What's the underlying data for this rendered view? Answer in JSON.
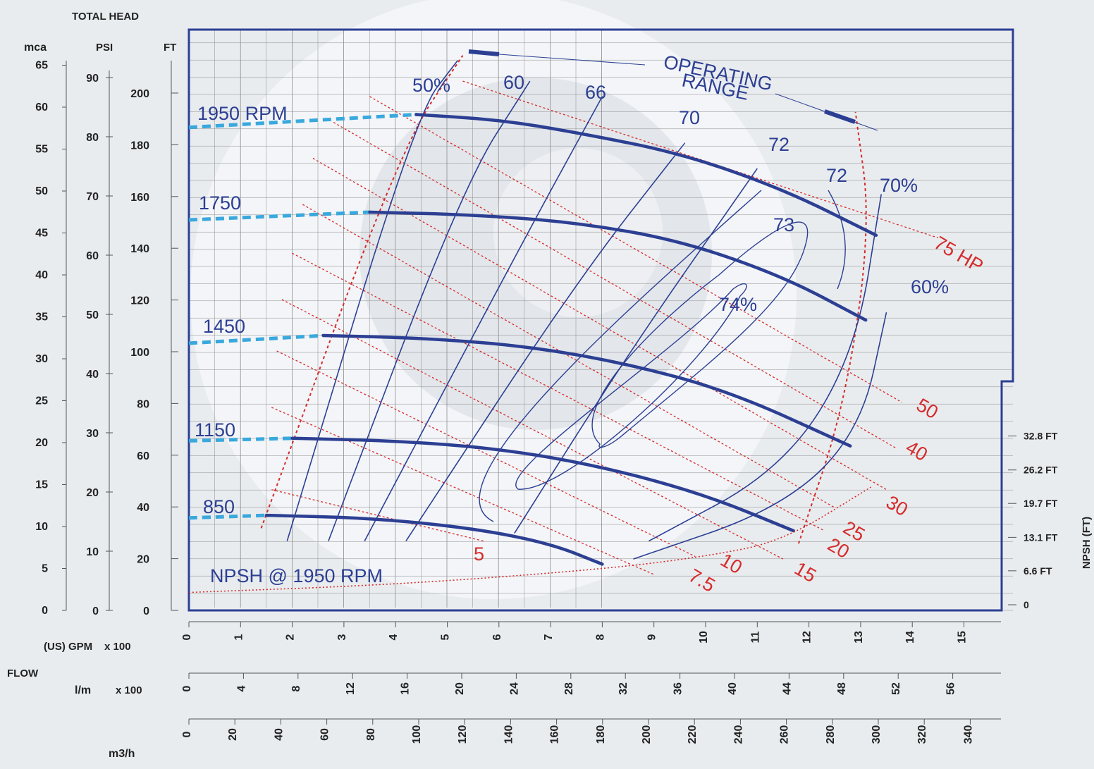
{
  "chart_data": {
    "type": "line",
    "title": "",
    "header": "TOTAL HEAD",
    "left_axes": {
      "mca": {
        "label": "mca",
        "ticks": [
          0,
          5,
          10,
          15,
          20,
          25,
          30,
          35,
          40,
          45,
          50,
          55,
          60,
          65
        ]
      },
      "psi": {
        "label": "PSI",
        "ticks": [
          0,
          10,
          20,
          30,
          40,
          50,
          60,
          70,
          80,
          90
        ]
      },
      "ft": {
        "label": "FT",
        "ticks": [
          0,
          20,
          40,
          60,
          80,
          100,
          120,
          140,
          160,
          180,
          200
        ]
      }
    },
    "flow_label": "FLOW",
    "bottom_axes": {
      "gpm": {
        "label": "(US) GPM",
        "multiplier": "x 100",
        "ticks": [
          0,
          1,
          2,
          3,
          4,
          5,
          6,
          7,
          8,
          9,
          10,
          11,
          12,
          13,
          14,
          15
        ]
      },
      "lpm": {
        "label": "l/m",
        "multiplier": "x 100",
        "ticks": [
          0,
          4,
          8,
          12,
          16,
          20,
          24,
          28,
          32,
          36,
          40,
          44,
          48,
          52,
          56
        ]
      },
      "m3h": {
        "label": "m3/h",
        "ticks": [
          0,
          20,
          40,
          60,
          80,
          100,
          120,
          140,
          160,
          180,
          200,
          220,
          240,
          260,
          280,
          300,
          320,
          340
        ]
      }
    },
    "npsh_axis": {
      "label": "NPSH (FT)",
      "ticks": [
        {
          "label": "0",
          "value": 0
        },
        {
          "label": "6.6 FT",
          "value": 6.6
        },
        {
          "label": "13.1 FT",
          "value": 13.1
        },
        {
          "label": "19.7 FT",
          "value": 19.7
        },
        {
          "label": "26.2 FT",
          "value": 26.2
        },
        {
          "label": "32.8 FT",
          "value": 32.8
        }
      ]
    },
    "xlim": [
      0,
      15.5
    ],
    "ylim": [
      0,
      225
    ],
    "grid": true,
    "speed_curves": [
      {
        "label": "1950 RPM",
        "dashed": [
          [
            0,
            188
          ],
          [
            4.4,
            193
          ]
        ],
        "points": [
          [
            4.4,
            193
          ],
          [
            6,
            191
          ],
          [
            7.5,
            186
          ],
          [
            9.5,
            178
          ],
          [
            11.5,
            164
          ],
          [
            13.3,
            146
          ]
        ]
      },
      {
        "label": "1750",
        "dashed": [
          [
            0,
            152
          ],
          [
            3.5,
            155
          ]
        ],
        "points": [
          [
            3.5,
            155
          ],
          [
            5.5,
            154
          ],
          [
            7.5,
            151
          ],
          [
            9.5,
            144
          ],
          [
            11.5,
            130
          ],
          [
            13.1,
            113
          ]
        ]
      },
      {
        "label": "1450",
        "dashed": [
          [
            0,
            104
          ],
          [
            2.6,
            107
          ]
        ],
        "points": [
          [
            2.6,
            107
          ],
          [
            4.5,
            106
          ],
          [
            6.5,
            103
          ],
          [
            8.5,
            96
          ],
          [
            10.5,
            85
          ],
          [
            12.8,
            64
          ]
        ]
      },
      {
        "label": "1150",
        "dashed": [
          [
            0,
            66
          ],
          [
            2.0,
            67
          ]
        ],
        "points": [
          [
            2.0,
            67
          ],
          [
            4,
            66
          ],
          [
            6,
            63
          ],
          [
            8,
            56
          ],
          [
            10,
            45
          ],
          [
            11.7,
            31
          ]
        ]
      },
      {
        "label": "850",
        "dashed": [
          [
            0,
            36
          ],
          [
            1.5,
            37
          ]
        ],
        "points": [
          [
            1.5,
            37
          ],
          [
            3.5,
            36
          ],
          [
            5.5,
            32
          ],
          [
            7,
            26
          ],
          [
            8,
            18
          ]
        ]
      }
    ],
    "efficiency_lines": [
      {
        "label": "50%",
        "points": [
          [
            1.9,
            27
          ],
          [
            4.4,
            193
          ],
          [
            5.2,
            214
          ]
        ]
      },
      {
        "label": "60",
        "points": [
          [
            2.7,
            27
          ],
          [
            5.3,
            165
          ],
          [
            6.6,
            206
          ]
        ]
      },
      {
        "label": "66",
        "points": [
          [
            3.4,
            27
          ],
          [
            6.5,
            145
          ],
          [
            8.0,
            200
          ]
        ]
      },
      {
        "label": "70",
        "points": [
          [
            4.2,
            27
          ],
          [
            7.5,
            128
          ],
          [
            9.6,
            182
          ]
        ]
      },
      {
        "label": "72",
        "points": [
          [
            6.3,
            30
          ],
          [
            8.5,
            100
          ],
          [
            11.0,
            172
          ]
        ]
      },
      {
        "label": "70%",
        "points": [
          [
            13.4,
            162
          ],
          [
            12.9,
            100
          ],
          [
            11.5,
            55
          ],
          [
            8.9,
            27
          ]
        ]
      },
      {
        "label": "60%",
        "points": [
          [
            13.5,
            116
          ],
          [
            13.0,
            70
          ],
          [
            11.5,
            40
          ],
          [
            8.6,
            20
          ]
        ]
      }
    ],
    "efficiency_contours": [
      {
        "label": "73"
      },
      {
        "label": "74%"
      },
      {
        "label": "72"
      }
    ],
    "horsepower_lines": [
      {
        "label": "5",
        "points": [
          [
            1.6,
            47
          ],
          [
            5.7,
            27
          ]
        ]
      },
      {
        "label": "7.5",
        "points": [
          [
            1.6,
            79
          ],
          [
            9.0,
            14
          ]
        ]
      },
      {
        "label": "10",
        "points": [
          [
            1.7,
            101
          ],
          [
            9.8,
            21
          ]
        ]
      },
      {
        "label": "15",
        "points": [
          [
            1.8,
            121
          ],
          [
            11.5,
            20
          ]
        ]
      },
      {
        "label": "20",
        "points": [
          [
            2.0,
            139
          ],
          [
            12.3,
            31
          ]
        ]
      },
      {
        "label": "25",
        "points": [
          [
            2.2,
            158
          ],
          [
            12.5,
            40
          ]
        ]
      },
      {
        "label": "30",
        "points": [
          [
            2.4,
            176
          ],
          [
            13.5,
            47
          ]
        ]
      },
      {
        "label": "40",
        "points": [
          [
            2.8,
            190
          ],
          [
            13.7,
            63
          ]
        ]
      },
      {
        "label": "50",
        "points": [
          [
            3.5,
            200
          ],
          [
            13.8,
            81
          ]
        ]
      },
      {
        "label": "75 HP",
        "points": [
          [
            5.3,
            206
          ],
          [
            14.5,
            145
          ]
        ]
      }
    ],
    "operating_range": {
      "label_line1": "OPERATING",
      "label_line2": "RANGE",
      "left_boundary": [
        [
          1.4,
          32
        ],
        [
          4.1,
          180
        ],
        [
          5.3,
          216
        ]
      ],
      "right_boundary": [
        [
          11.8,
          26
        ],
        [
          12.7,
          80
        ],
        [
          13.2,
          150
        ],
        [
          12.9,
          194
        ]
      ]
    },
    "npsh_curve": {
      "label": "NPSH @ 1950 RPM",
      "points": [
        [
          0,
          7
        ],
        [
          4,
          10
        ],
        [
          8,
          16
        ],
        [
          10,
          21
        ],
        [
          11.5,
          27
        ],
        [
          13.2,
          48
        ]
      ]
    }
  }
}
